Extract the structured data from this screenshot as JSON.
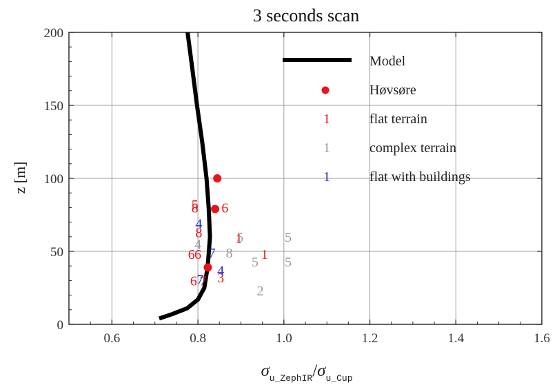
{
  "chart_data": {
    "type": "scatter",
    "title": "3 seconds scan",
    "ylabel": "z [m]",
    "xlabel": {
      "sigma": "σ",
      "num_sub": "u_ZephIR",
      "slash": "/",
      "den_sub": "u_Cup"
    },
    "xlim": [
      0.5,
      1.6
    ],
    "ylim": [
      0,
      200
    ],
    "xticks": [
      "0.6",
      "0.8",
      "1.0",
      "1.2",
      "1.4",
      "1.6"
    ],
    "yticks": [
      "0",
      "50",
      "100",
      "150",
      "200"
    ],
    "xtick_values": [
      0.6,
      0.8,
      1.0,
      1.2,
      1.4,
      1.6
    ],
    "ytick_values": [
      0,
      50,
      100,
      150,
      200
    ],
    "grid": true,
    "legend_position": "top-right",
    "legend": [
      {
        "kind": "line",
        "label": "Model",
        "color": "#000000"
      },
      {
        "kind": "dot",
        "label": "Høvsøre",
        "color": "#e8141a"
      },
      {
        "kind": "text",
        "marker": "1",
        "label": "flat terrain",
        "color": "#e8141a"
      },
      {
        "kind": "text",
        "marker": "1",
        "label": "complex terrain",
        "color": "#9a9a9a"
      },
      {
        "kind": "text",
        "marker": "1",
        "label": "flat with buildings",
        "color": "#1c2bd6"
      }
    ],
    "series": [
      {
        "name": "Model",
        "style": "line",
        "color": "#000000",
        "points": [
          [
            0.71,
            4
          ],
          [
            0.74,
            7
          ],
          [
            0.775,
            11
          ],
          [
            0.8,
            17
          ],
          [
            0.815,
            25
          ],
          [
            0.823,
            40
          ],
          [
            0.828,
            60
          ],
          [
            0.825,
            80
          ],
          [
            0.82,
            100
          ],
          [
            0.81,
            125
          ],
          [
            0.798,
            150
          ],
          [
            0.787,
            175
          ],
          [
            0.776,
            200
          ]
        ]
      },
      {
        "name": "Høvsøre",
        "style": "dot",
        "color": "#e8141a",
        "points": [
          [
            0.845,
            100
          ],
          [
            0.84,
            79
          ],
          [
            0.823,
            39
          ]
        ]
      },
      {
        "name": "flat terrain",
        "style": "text",
        "color": "#e8141a",
        "points": [
          {
            "x": 0.793,
            "y": 80,
            "label": "8"
          },
          {
            "x": 0.793,
            "y": 82,
            "label": "5"
          },
          {
            "x": 0.863,
            "y": 80,
            "label": "6"
          },
          {
            "x": 0.802,
            "y": 63,
            "label": "8"
          },
          {
            "x": 0.895,
            "y": 59,
            "label": "1"
          },
          {
            "x": 0.785,
            "y": 48,
            "label": "6"
          },
          {
            "x": 0.8,
            "y": 48,
            "label": "6"
          },
          {
            "x": 0.955,
            "y": 48,
            "label": "1"
          },
          {
            "x": 0.79,
            "y": 30,
            "label": "6"
          },
          {
            "x": 0.812,
            "y": 30,
            "label": "7"
          },
          {
            "x": 0.853,
            "y": 32,
            "label": "3"
          }
        ]
      },
      {
        "name": "complex terrain",
        "style": "text",
        "color": "#9a9a9a",
        "points": [
          {
            "x": 0.898,
            "y": 60,
            "label": "5"
          },
          {
            "x": 1.01,
            "y": 60,
            "label": "5"
          },
          {
            "x": 0.8,
            "y": 55,
            "label": "4"
          },
          {
            "x": 0.873,
            "y": 49,
            "label": "8"
          },
          {
            "x": 0.933,
            "y": 43,
            "label": "5"
          },
          {
            "x": 1.01,
            "y": 43,
            "label": "5"
          },
          {
            "x": 0.945,
            "y": 23,
            "label": "2"
          }
        ]
      },
      {
        "name": "flat with buildings",
        "style": "text",
        "color": "#1c2bd6",
        "points": [
          {
            "x": 0.802,
            "y": 69,
            "label": "4"
          },
          {
            "x": 0.833,
            "y": 49,
            "label": "7"
          },
          {
            "x": 0.853,
            "y": 37,
            "label": "4"
          },
          {
            "x": 0.805,
            "y": 31,
            "label": "7"
          }
        ]
      }
    ]
  }
}
